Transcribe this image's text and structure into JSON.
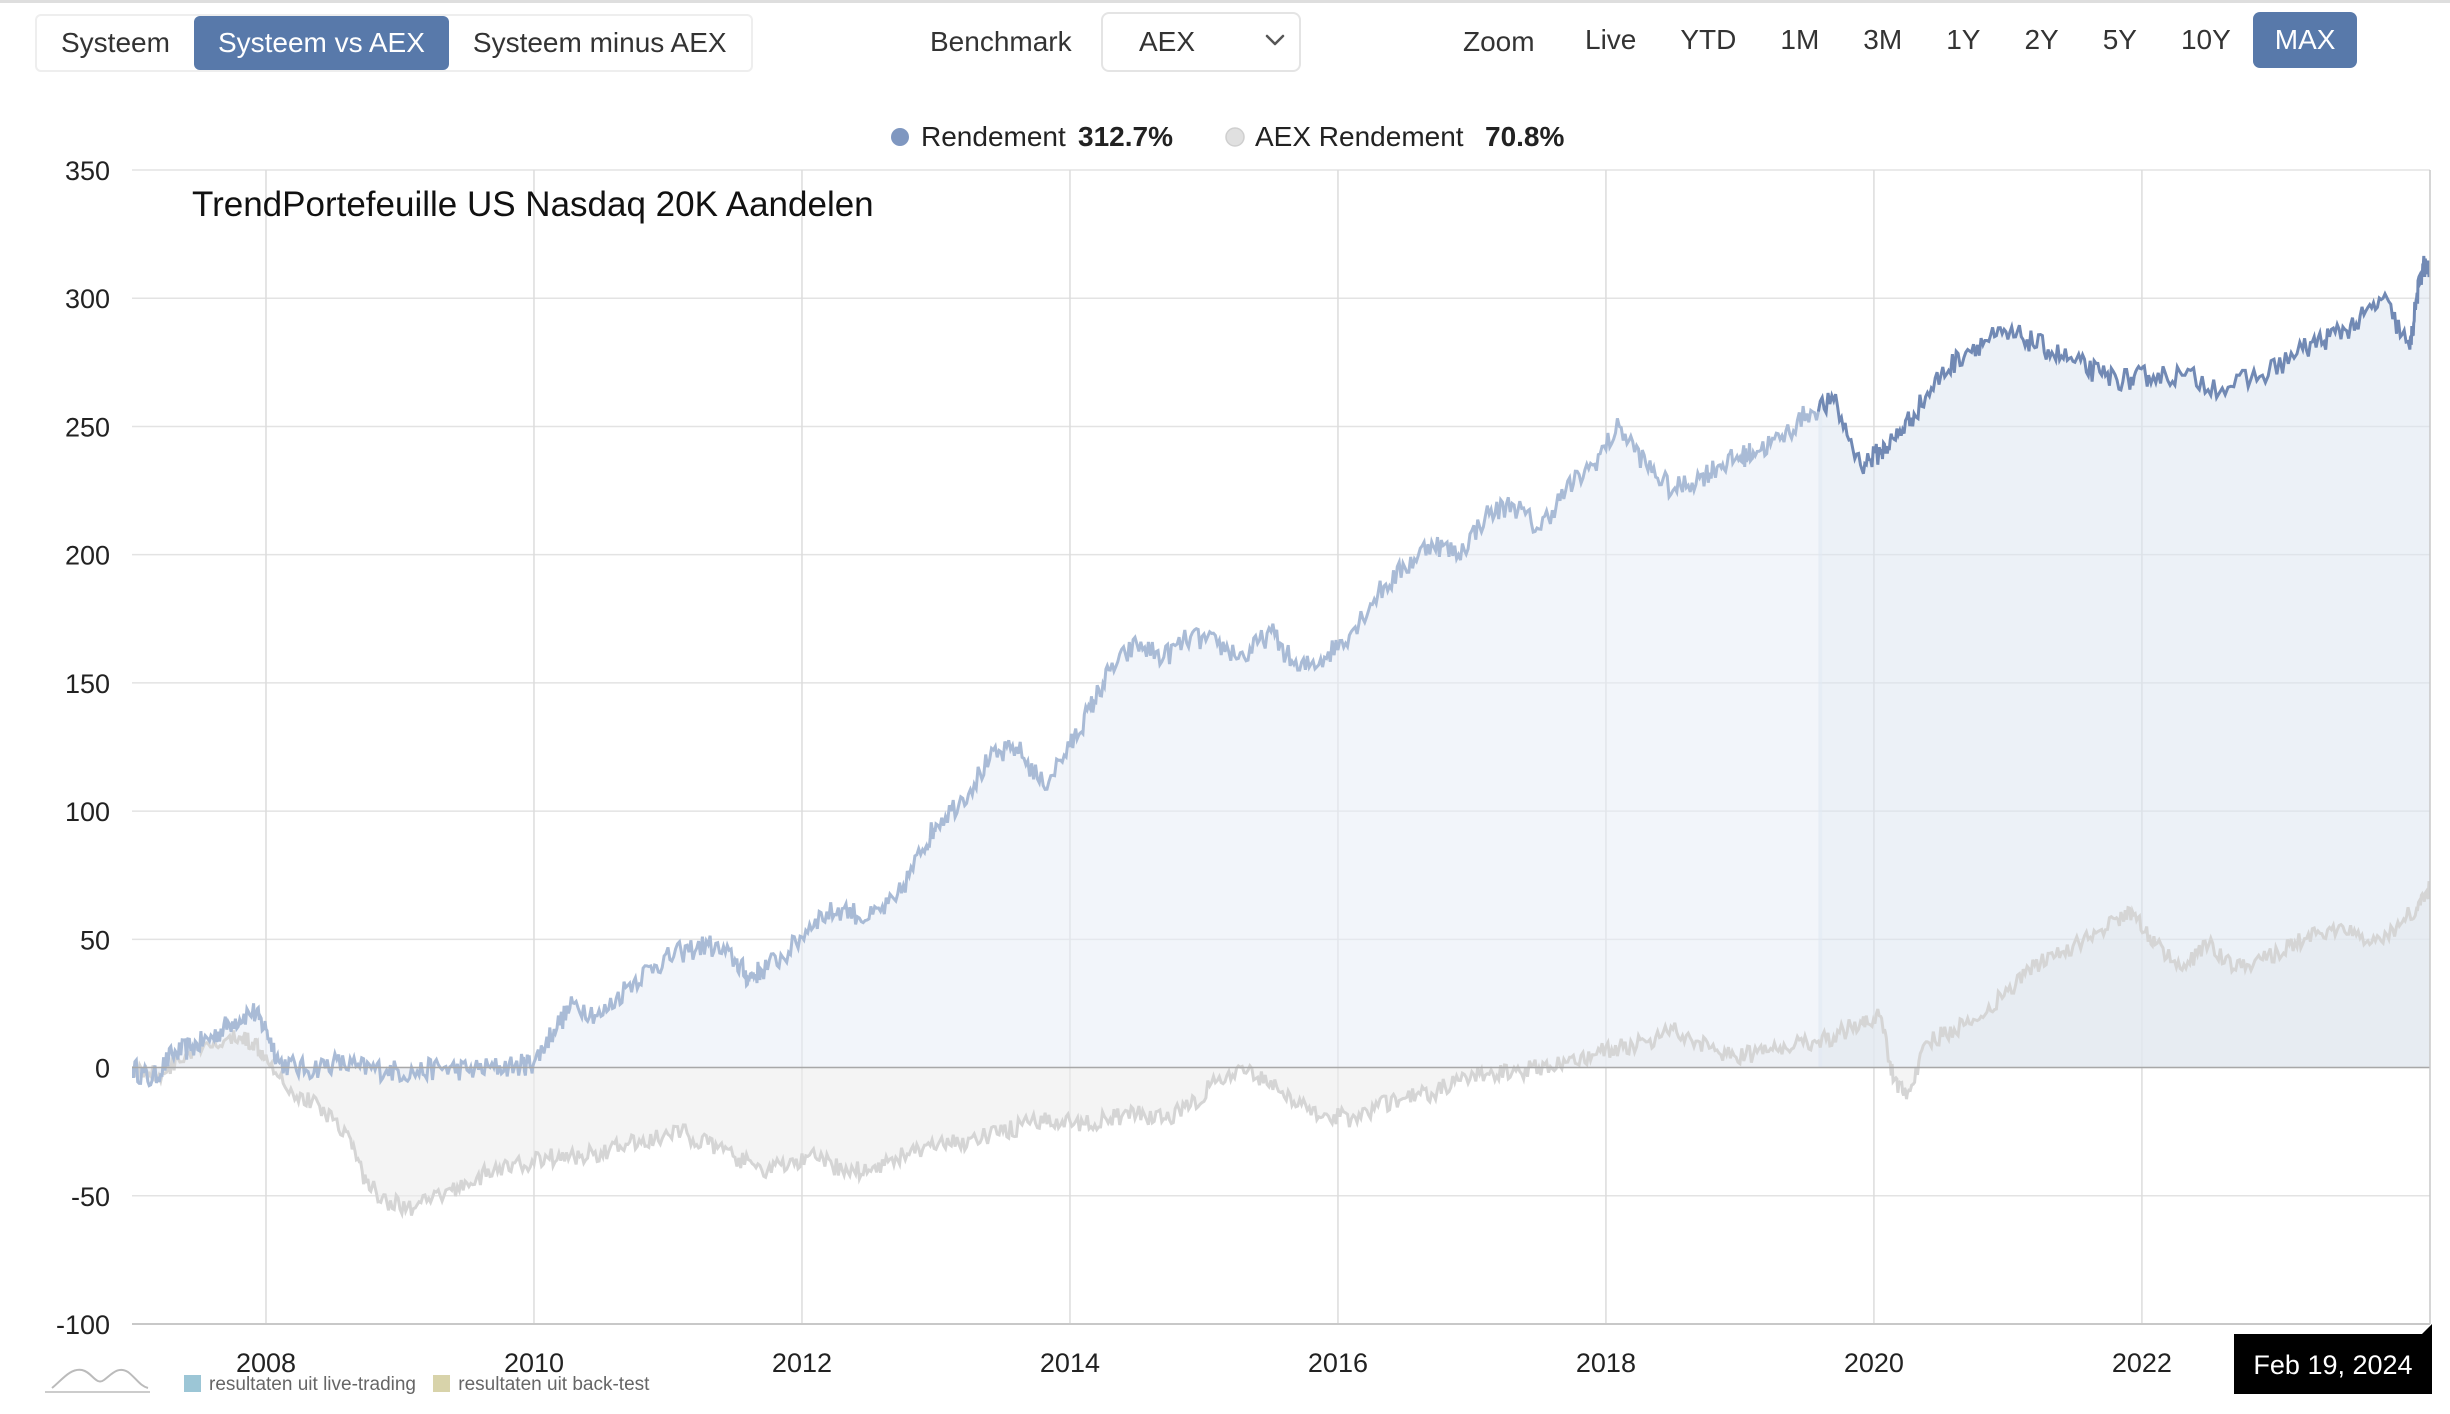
{
  "view_tabs": [
    {
      "label": "Systeem",
      "active": false
    },
    {
      "label": "Systeem vs AEX",
      "active": true
    },
    {
      "label": "Systeem minus AEX",
      "active": false
    }
  ],
  "benchmark": {
    "label": "Benchmark",
    "value": "AEX"
  },
  "zoom": {
    "label": "Zoom",
    "options": [
      {
        "label": "Live",
        "active": false
      },
      {
        "label": "YTD",
        "active": false
      },
      {
        "label": "1M",
        "active": false
      },
      {
        "label": "3M",
        "active": false
      },
      {
        "label": "1Y",
        "active": false
      },
      {
        "label": "2Y",
        "active": false
      },
      {
        "label": "5Y",
        "active": false
      },
      {
        "label": "10Y",
        "active": false
      },
      {
        "label": "MAX",
        "active": true
      }
    ]
  },
  "legend_values": {
    "rendement": "312.7%",
    "aex": "70.8%"
  },
  "footer": {
    "live": "resultaten uit live-trading",
    "backtest": "resultaten uit back-test"
  },
  "colors": {
    "accent": "#5879aa",
    "system_backtest": "#a9bbd6",
    "system_live": "#7189b4",
    "aex_line": "#d5d5d5",
    "live_swatch": "#9cc6d6",
    "backtest_swatch": "#d8d3aa"
  },
  "chart_data": {
    "type": "line",
    "title": "TrendPortefeuille US Nasdaq 20K Aandelen",
    "xlabel": "",
    "ylabel": "",
    "ylim": [
      -100,
      350
    ],
    "yticks": [
      -100,
      -50,
      0,
      50,
      100,
      150,
      200,
      250,
      300,
      350
    ],
    "xticks": [
      2008,
      2010,
      2012,
      2014,
      2016,
      2018,
      2020,
      2022
    ],
    "xlim": [
      2007.0,
      2024.15
    ],
    "grid": true,
    "legend_position": "top-center",
    "live_start": 2019.6,
    "tooltip_date": "Feb 19, 2024",
    "series": [
      {
        "name": "Rendement",
        "legend_value": "312.7%",
        "color": "#7189b4",
        "x": [
          2007.0,
          2007.15,
          2007.3,
          2007.45,
          2007.6,
          2007.75,
          2007.9,
          2008.0,
          2008.1,
          2008.3,
          2008.5,
          2008.7,
          2008.9,
          2009.1,
          2009.3,
          2009.5,
          2009.7,
          2009.9,
          2010.0,
          2010.15,
          2010.3,
          2010.5,
          2010.7,
          2010.9,
          2011.1,
          2011.3,
          2011.5,
          2011.6,
          2011.7,
          2011.9,
          2012.1,
          2012.3,
          2012.5,
          2012.7,
          2012.9,
          2013.0,
          2013.2,
          2013.4,
          2013.6,
          2013.8,
          2014.0,
          2014.15,
          2014.3,
          2014.5,
          2014.7,
          2014.9,
          2015.1,
          2015.3,
          2015.5,
          2015.7,
          2015.9,
          2016.1,
          2016.3,
          2016.5,
          2016.7,
          2016.9,
          2017.1,
          2017.3,
          2017.5,
          2017.7,
          2017.9,
          2018.1,
          2018.3,
          2018.5,
          2018.7,
          2018.85,
          2019.0,
          2019.1,
          2019.3,
          2019.5,
          2019.7,
          2019.9,
          2020.05,
          2020.15,
          2020.3,
          2020.5,
          2020.7,
          2020.9,
          2021.1,
          2021.3,
          2021.5,
          2021.7,
          2021.9,
          2022.05,
          2022.3,
          2022.6,
          2022.9,
          2023.2,
          2023.4,
          2023.6,
          2023.8,
          2024.0,
          2024.05,
          2024.1,
          2024.15
        ],
        "y": [
          0,
          -5,
          5,
          8,
          12,
          18,
          22,
          15,
          2,
          -1,
          2,
          0,
          -1,
          -2,
          0,
          -1,
          0,
          1,
          2,
          15,
          25,
          20,
          32,
          40,
          45,
          48,
          42,
          35,
          38,
          45,
          58,
          62,
          58,
          65,
          85,
          95,
          105,
          120,
          125,
          110,
          125,
          140,
          155,
          165,
          160,
          168,
          165,
          160,
          170,
          155,
          160,
          170,
          185,
          195,
          205,
          200,
          215,
          220,
          210,
          225,
          235,
          250,
          235,
          225,
          230,
          235,
          238,
          240,
          245,
          255,
          260,
          235,
          240,
          245,
          255,
          270,
          280,
          285,
          285,
          280,
          275,
          270,
          268,
          270,
          270,
          265,
          270,
          280,
          285,
          290,
          300,
          280,
          300,
          313,
          310
        ]
      },
      {
        "name": "AEX Rendement",
        "legend_value": "70.8%",
        "color": "#d5d5d5",
        "x": [
          2007.0,
          2007.2,
          2007.4,
          2007.6,
          2007.8,
          2007.9,
          2008.0,
          2008.2,
          2008.4,
          2008.6,
          2008.75,
          2008.9,
          2009.1,
          2009.3,
          2009.5,
          2009.7,
          2009.9,
          2010.1,
          2010.3,
          2010.5,
          2010.7,
          2010.9,
          2011.1,
          2011.3,
          2011.5,
          2011.7,
          2011.9,
          2012.1,
          2012.3,
          2012.5,
          2012.7,
          2012.9,
          2013.1,
          2013.3,
          2013.5,
          2013.7,
          2013.9,
          2014.1,
          2014.3,
          2014.5,
          2014.7,
          2014.9,
          2015.1,
          2015.3,
          2015.5,
          2015.7,
          2015.9,
          2016.1,
          2016.3,
          2016.5,
          2016.7,
          2016.9,
          2017.1,
          2017.3,
          2017.5,
          2017.7,
          2017.9,
          2018.1,
          2018.3,
          2018.5,
          2018.7,
          2018.9,
          2019.1,
          2019.3,
          2019.5,
          2019.7,
          2019.9,
          2020.05,
          2020.15,
          2020.25,
          2020.4,
          2020.6,
          2020.8,
          2021.0,
          2021.2,
          2021.4,
          2021.6,
          2021.8,
          2021.95,
          2022.1,
          2022.3,
          2022.5,
          2022.7,
          2022.9,
          2023.1,
          2023.3,
          2023.5,
          2023.7,
          2023.9,
          2024.05,
          2024.15
        ],
        "y": [
          0,
          -3,
          5,
          8,
          12,
          10,
          5,
          -10,
          -15,
          -25,
          -45,
          -52,
          -55,
          -50,
          -45,
          -40,
          -38,
          -35,
          -35,
          -33,
          -30,
          -28,
          -25,
          -30,
          -35,
          -40,
          -38,
          -35,
          -40,
          -40,
          -35,
          -32,
          -30,
          -28,
          -25,
          -22,
          -20,
          -22,
          -20,
          -18,
          -20,
          -15,
          -5,
          -2,
          -5,
          -15,
          -18,
          -20,
          -15,
          -12,
          -10,
          -5,
          -3,
          -2,
          0,
          2,
          5,
          8,
          10,
          15,
          10,
          5,
          5,
          8,
          10,
          12,
          18,
          20,
          -5,
          -10,
          10,
          15,
          20,
          30,
          40,
          45,
          50,
          58,
          60,
          48,
          38,
          48,
          38,
          42,
          48,
          52,
          55,
          48,
          55,
          62,
          70
        ]
      }
    ]
  }
}
